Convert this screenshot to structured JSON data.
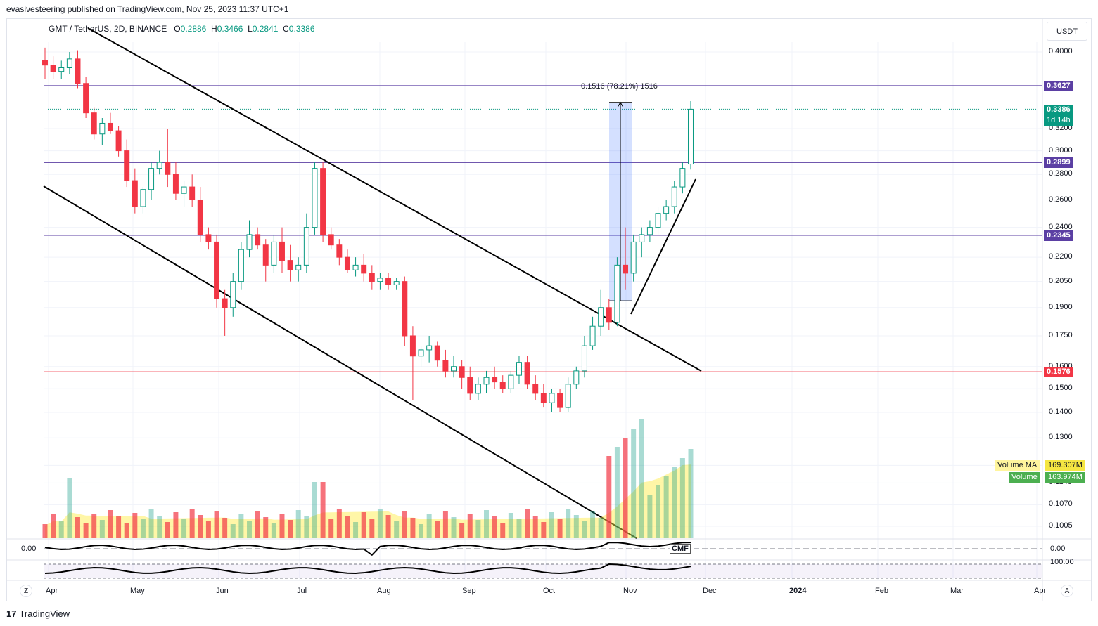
{
  "header": {
    "publisher_text": "evasivesteering published on TradingView.com, Nov 25, 2023 11:37 UTC+1"
  },
  "symbol": {
    "name": "GMT / TetherUS, 2D, BINANCE",
    "open_label": "O",
    "open": "0.2886",
    "high_label": "H",
    "high": "0.3466",
    "low_label": "L",
    "low": "0.2841",
    "close_label": "C",
    "close": "0.3386"
  },
  "currency": "USDT",
  "price_axis": {
    "ticks": [
      "0.4000",
      "0.3200",
      "0.3000",
      "0.2800",
      "0.2600",
      "0.2400",
      "0.2200",
      "0.2050",
      "0.1900",
      "0.1750",
      "0.1600",
      "0.1500",
      "0.1400",
      "0.1300",
      "0.1200",
      "0.1140",
      "0.1070",
      "0.1005"
    ]
  },
  "level_tags": [
    {
      "label": "0.3627",
      "color": "#5b3fa3"
    },
    {
      "label": "0.2899",
      "color": "#5b3fa3"
    },
    {
      "label": "0.2345",
      "color": "#5b3fa3"
    },
    {
      "label": "0.1576",
      "color": "#f23645"
    }
  ],
  "last_price": {
    "value": "0.3386",
    "countdown": "1d 14h",
    "color": "#089981"
  },
  "measure": {
    "text": "0.1516 (78.21%) 1516"
  },
  "legend": {
    "volume_ma_label": "Volume MA",
    "volume_ma_value": "169.307M",
    "volume_label": "Volume",
    "volume_value": "163.974M"
  },
  "cmf": {
    "name": "CMF",
    "left_value": "0.00",
    "right_value": "0.00"
  },
  "osc2": {
    "right_value": "100.00"
  },
  "time_axis": {
    "labels": [
      "Apr",
      "May",
      "Jun",
      "Jul",
      "Aug",
      "Sep",
      "Oct",
      "Nov",
      "Dec",
      "2024",
      "Feb",
      "Mar",
      "Apr"
    ]
  },
  "footer": {
    "brand": "TradingView",
    "left_btn": "Z",
    "right_btn": "A"
  },
  "colors": {
    "up": "#089981",
    "down": "#f23645",
    "level": "#5b3fa3",
    "support": "#f23645"
  },
  "chart_data": {
    "type": "candlestick",
    "title": "GMT / TetherUS, 2D, BINANCE",
    "ylim": [
      0.1,
      0.42
    ],
    "log_scale": true,
    "candles": [
      [
        0.39,
        0.405,
        0.37,
        0.385
      ],
      [
        0.385,
        0.395,
        0.37,
        0.378
      ],
      [
        0.378,
        0.39,
        0.37,
        0.382
      ],
      [
        0.382,
        0.4,
        0.375,
        0.392
      ],
      [
        0.392,
        0.402,
        0.36,
        0.365
      ],
      [
        0.365,
        0.372,
        0.33,
        0.335
      ],
      [
        0.335,
        0.34,
        0.31,
        0.315
      ],
      [
        0.315,
        0.33,
        0.305,
        0.325
      ],
      [
        0.325,
        0.335,
        0.315,
        0.318
      ],
      [
        0.318,
        0.322,
        0.295,
        0.3
      ],
      [
        0.3,
        0.31,
        0.27,
        0.275
      ],
      [
        0.275,
        0.285,
        0.25,
        0.255
      ],
      [
        0.255,
        0.27,
        0.25,
        0.268
      ],
      [
        0.268,
        0.29,
        0.26,
        0.285
      ],
      [
        0.285,
        0.3,
        0.28,
        0.29
      ],
      [
        0.29,
        0.32,
        0.27,
        0.28
      ],
      [
        0.28,
        0.29,
        0.26,
        0.265
      ],
      [
        0.265,
        0.275,
        0.255,
        0.27
      ],
      [
        0.27,
        0.28,
        0.255,
        0.26
      ],
      [
        0.26,
        0.27,
        0.23,
        0.235
      ],
      [
        0.235,
        0.24,
        0.225,
        0.23
      ],
      [
        0.23,
        0.235,
        0.19,
        0.195
      ],
      [
        0.195,
        0.2,
        0.175,
        0.19
      ],
      [
        0.19,
        0.21,
        0.185,
        0.205
      ],
      [
        0.205,
        0.23,
        0.2,
        0.225
      ],
      [
        0.225,
        0.245,
        0.22,
        0.235
      ],
      [
        0.235,
        0.24,
        0.225,
        0.228
      ],
      [
        0.228,
        0.232,
        0.205,
        0.215
      ],
      [
        0.215,
        0.235,
        0.21,
        0.23
      ],
      [
        0.23,
        0.24,
        0.21,
        0.218
      ],
      [
        0.218,
        0.228,
        0.205,
        0.212
      ],
      [
        0.212,
        0.22,
        0.205,
        0.215
      ],
      [
        0.215,
        0.25,
        0.21,
        0.24
      ],
      [
        0.24,
        0.29,
        0.235,
        0.285
      ],
      [
        0.285,
        0.29,
        0.23,
        0.235
      ],
      [
        0.235,
        0.24,
        0.225,
        0.228
      ],
      [
        0.228,
        0.232,
        0.215,
        0.22
      ],
      [
        0.22,
        0.225,
        0.21,
        0.212
      ],
      [
        0.212,
        0.22,
        0.208,
        0.215
      ],
      [
        0.215,
        0.222,
        0.205,
        0.21
      ],
      [
        0.21,
        0.215,
        0.2,
        0.205
      ],
      [
        0.205,
        0.21,
        0.2,
        0.207
      ],
      [
        0.207,
        0.21,
        0.2,
        0.203
      ],
      [
        0.203,
        0.207,
        0.2,
        0.205
      ],
      [
        0.205,
        0.208,
        0.17,
        0.175
      ],
      [
        0.175,
        0.18,
        0.145,
        0.165
      ],
      [
        0.165,
        0.17,
        0.16,
        0.168
      ],
      [
        0.168,
        0.175,
        0.162,
        0.17
      ],
      [
        0.17,
        0.172,
        0.16,
        0.163
      ],
      [
        0.163,
        0.168,
        0.155,
        0.158
      ],
      [
        0.158,
        0.165,
        0.155,
        0.16
      ],
      [
        0.16,
        0.163,
        0.15,
        0.155
      ],
      [
        0.155,
        0.16,
        0.145,
        0.148
      ],
      [
        0.148,
        0.155,
        0.145,
        0.152
      ],
      [
        0.152,
        0.158,
        0.148,
        0.155
      ],
      [
        0.155,
        0.16,
        0.15,
        0.153
      ],
      [
        0.153,
        0.156,
        0.148,
        0.15
      ],
      [
        0.15,
        0.158,
        0.148,
        0.156
      ],
      [
        0.156,
        0.165,
        0.152,
        0.162
      ],
      [
        0.162,
        0.165,
        0.15,
        0.152
      ],
      [
        0.152,
        0.156,
        0.145,
        0.148
      ],
      [
        0.148,
        0.152,
        0.142,
        0.144
      ],
      [
        0.144,
        0.15,
        0.14,
        0.148
      ],
      [
        0.148,
        0.15,
        0.14,
        0.142
      ],
      [
        0.142,
        0.155,
        0.14,
        0.152
      ],
      [
        0.152,
        0.16,
        0.15,
        0.158
      ],
      [
        0.158,
        0.175,
        0.155,
        0.17
      ],
      [
        0.17,
        0.185,
        0.168,
        0.18
      ],
      [
        0.18,
        0.2,
        0.175,
        0.19
      ],
      [
        0.19,
        0.195,
        0.178,
        0.182
      ],
      [
        0.182,
        0.22,
        0.18,
        0.215
      ],
      [
        0.215,
        0.24,
        0.2,
        0.21
      ],
      [
        0.21,
        0.235,
        0.205,
        0.23
      ],
      [
        0.23,
        0.24,
        0.22,
        0.235
      ],
      [
        0.235,
        0.245,
        0.23,
        0.24
      ],
      [
        0.24,
        0.255,
        0.235,
        0.25
      ],
      [
        0.25,
        0.26,
        0.245,
        0.255
      ],
      [
        0.255,
        0.275,
        0.25,
        0.27
      ],
      [
        0.27,
        0.29,
        0.265,
        0.285
      ],
      [
        0.2886,
        0.3466,
        0.2841,
        0.3386
      ]
    ],
    "horizontal_levels": [
      0.3627,
      0.2899,
      0.2345,
      0.1576
    ],
    "measure": {
      "from": 0.1938,
      "to": 0.3454,
      "change": 0.1516,
      "percent": "78.21%"
    },
    "volume_axis": "overlay",
    "series": [
      {
        "name": "Volume MA",
        "last": "169.307M"
      },
      {
        "name": "Volume",
        "last": "163.974M"
      },
      {
        "name": "CMF",
        "last": "0.00"
      }
    ]
  }
}
